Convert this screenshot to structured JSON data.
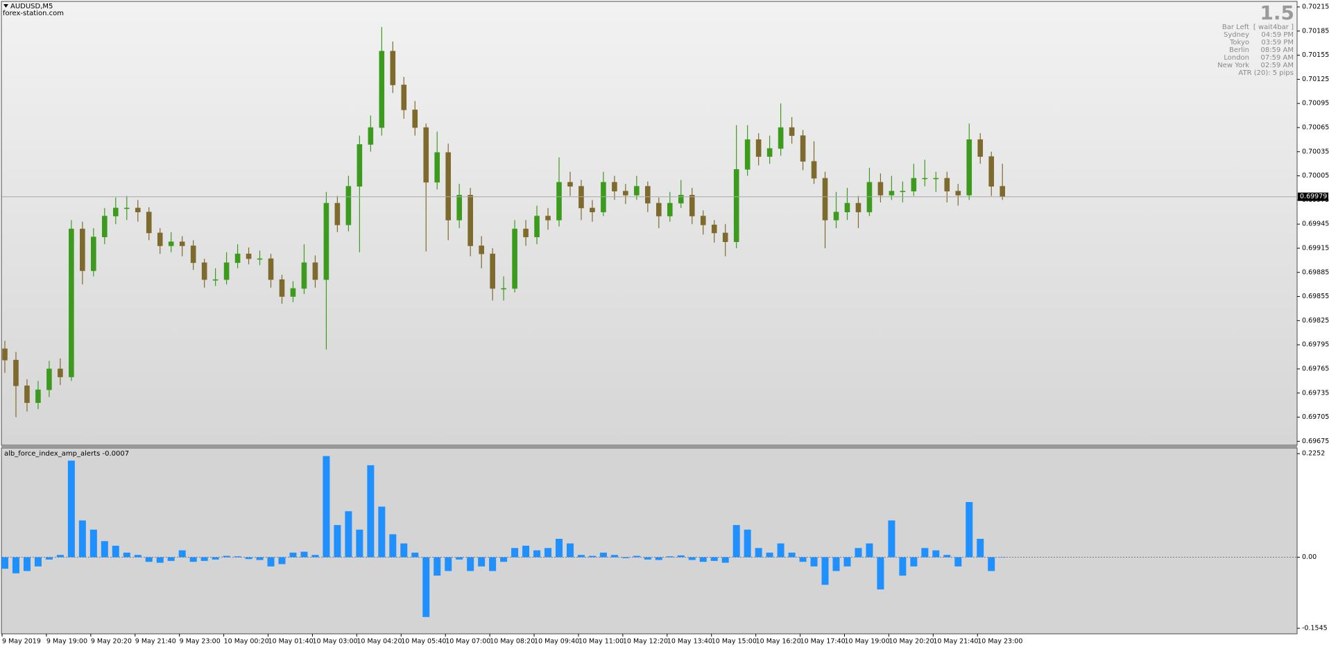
{
  "chart_data": [
    {
      "type": "candlestick",
      "title": "AUDUSD,M5",
      "subtitle": "forex-station.com",
      "categories": [
        "9 May 2019",
        null,
        null,
        null,
        "9 May 19:00",
        null,
        null,
        null,
        "9 May 20:20",
        null,
        null,
        null,
        "9 May 21:40",
        null,
        null,
        null,
        "9 May 23:00",
        null,
        null,
        null,
        "10 May 00:20",
        null,
        null,
        null,
        "10 May 01:40",
        null,
        null,
        null,
        "10 May 03:00",
        null,
        null,
        null,
        "10 May 04:20",
        null,
        null,
        null,
        "10 May 05:40",
        null,
        null,
        null,
        "10 May 07:00",
        null,
        null,
        null,
        "10 May 08:20",
        null,
        null,
        null,
        "10 May 09:40",
        null,
        null,
        null,
        "10 May 11:00",
        null,
        null,
        null,
        "10 May 12:20",
        null,
        null,
        null,
        "10 May 13:40",
        null,
        null,
        null,
        "10 May 15:00",
        null,
        null,
        null,
        "10 May 16:20",
        null,
        null,
        null,
        "10 May 17:40",
        null,
        null,
        null,
        "10 May 19:00",
        null,
        null,
        null,
        "10 May 20:20",
        null,
        null,
        null,
        "10 May 21:40",
        null,
        null,
        null,
        "10 May 23:00",
        null,
        null
      ],
      "open": [
        0.6979,
        0.69776,
        0.69744,
        0.69723,
        0.69739,
        0.69765,
        0.69755,
        0.69939,
        0.69887,
        0.69929,
        0.69955,
        0.69965,
        0.69965,
        0.6996,
        0.69934,
        0.69918,
        0.69923,
        0.69918,
        0.69897,
        0.69876,
        0.69876,
        0.69897,
        0.69908,
        0.69902,
        0.69902,
        0.69876,
        0.69855,
        0.69865,
        0.69897,
        0.69876,
        0.69971,
        0.69944,
        0.69992,
        0.70044,
        0.70065,
        0.7016,
        0.70118,
        0.70087,
        0.70065,
        0.69997,
        0.70034,
        0.6995,
        0.69981,
        0.69918,
        0.69908,
        0.69865,
        0.69865,
        0.69939,
        0.69929,
        0.69955,
        0.6995,
        0.69997,
        0.69992,
        0.69965,
        0.6996,
        0.69997,
        0.69986,
        0.69981,
        0.69992,
        0.69971,
        0.69955,
        0.69971,
        0.69981,
        0.69955,
        0.69944,
        0.69934,
        0.69923,
        0.70013,
        0.7005,
        0.70029,
        0.70039,
        0.70065,
        0.70055,
        0.70023,
        0.70002,
        0.6995,
        0.6996,
        0.69971,
        0.6996,
        0.69997,
        0.69981,
        0.69986,
        0.69986,
        0.70002,
        0.70002,
        0.70002,
        0.69986,
        0.69981,
        0.7005,
        0.70029,
        0.69992
      ],
      "high": [
        0.698,
        0.69786,
        0.69752,
        0.6975,
        0.69775,
        0.69778,
        0.6995,
        0.69948,
        0.6994,
        0.69965,
        0.69978,
        0.6998,
        0.69975,
        0.69966,
        0.6994,
        0.69935,
        0.6993,
        0.69925,
        0.69902,
        0.6989,
        0.6991,
        0.6992,
        0.69916,
        0.69912,
        0.69908,
        0.69882,
        0.69874,
        0.6992,
        0.69906,
        0.69985,
        0.6998,
        0.70005,
        0.70055,
        0.7008,
        0.7019,
        0.70172,
        0.70128,
        0.70098,
        0.7007,
        0.7006,
        0.70045,
        0.69995,
        0.6999,
        0.6993,
        0.69915,
        0.6988,
        0.6995,
        0.6995,
        0.69968,
        0.69965,
        0.70028,
        0.7001,
        0.7,
        0.69975,
        0.7001,
        0.70005,
        0.69995,
        0.70005,
        0.69998,
        0.69978,
        0.69985,
        0.7,
        0.6999,
        0.69962,
        0.6995,
        0.69945,
        0.70068,
        0.70068,
        0.70058,
        0.70055,
        0.70095,
        0.70078,
        0.70062,
        0.70048,
        0.7001,
        0.69985,
        0.6999,
        0.6998,
        0.70015,
        0.70008,
        0.70005,
        0.69998,
        0.7002,
        0.70025,
        0.7001,
        0.7001,
        0.69995,
        0.7007,
        0.70058,
        0.70035,
        0.7002
      ],
      "low": [
        0.6976,
        0.69705,
        0.69712,
        0.69715,
        0.6973,
        0.69745,
        0.6975,
        0.6987,
        0.6988,
        0.6992,
        0.69945,
        0.6995,
        0.69948,
        0.69925,
        0.69908,
        0.6991,
        0.69905,
        0.69888,
        0.69866,
        0.69868,
        0.6987,
        0.6989,
        0.69895,
        0.69894,
        0.69866,
        0.69846,
        0.69848,
        0.69858,
        0.69866,
        0.69789,
        0.69935,
        0.69936,
        0.6991,
        0.70035,
        0.70055,
        0.70108,
        0.70076,
        0.70055,
        0.69911,
        0.69988,
        0.69925,
        0.6994,
        0.69905,
        0.6989,
        0.6985,
        0.6985,
        0.6986,
        0.69918,
        0.6992,
        0.69938,
        0.69942,
        0.6998,
        0.6995,
        0.69948,
        0.69955,
        0.69975,
        0.6997,
        0.69975,
        0.6996,
        0.6994,
        0.69948,
        0.69965,
        0.69945,
        0.69932,
        0.69922,
        0.69905,
        0.69915,
        0.70005,
        0.70018,
        0.7002,
        0.7003,
        0.70045,
        0.70012,
        0.69995,
        0.69915,
        0.6994,
        0.6995,
        0.6994,
        0.69955,
        0.69972,
        0.69975,
        0.69972,
        0.6998,
        0.69992,
        0.69985,
        0.69972,
        0.69968,
        0.69975,
        0.7002,
        0.6998,
        0.69975
      ],
      "close": [
        0.69776,
        0.69744,
        0.69723,
        0.69739,
        0.69765,
        0.69755,
        0.69939,
        0.69887,
        0.69929,
        0.69955,
        0.69965,
        0.69965,
        0.6996,
        0.69934,
        0.69918,
        0.69923,
        0.69918,
        0.69897,
        0.69876,
        0.69876,
        0.69897,
        0.69908,
        0.69902,
        0.69902,
        0.69876,
        0.69855,
        0.69865,
        0.69897,
        0.69876,
        0.69971,
        0.69944,
        0.69992,
        0.70044,
        0.70065,
        0.7016,
        0.70118,
        0.70087,
        0.70065,
        0.69997,
        0.70034,
        0.6995,
        0.69981,
        0.69918,
        0.69908,
        0.69865,
        0.69865,
        0.69939,
        0.69929,
        0.69955,
        0.6995,
        0.69997,
        0.69992,
        0.69965,
        0.6996,
        0.69997,
        0.69986,
        0.69981,
        0.69992,
        0.69971,
        0.69955,
        0.69971,
        0.69981,
        0.69955,
        0.69944,
        0.69934,
        0.69923,
        0.70013,
        0.7005,
        0.70029,
        0.70039,
        0.70065,
        0.70055,
        0.70023,
        0.70002,
        0.6995,
        0.6996,
        0.69971,
        0.6996,
        0.69997,
        0.69981,
        0.69986,
        0.69986,
        0.70002,
        0.70002,
        0.70002,
        0.69986,
        0.69981,
        0.7005,
        0.70029,
        0.69992,
        0.69979
      ],
      "up_color": "#3c9b1c",
      "down_color": "#7d6a2c",
      "ylim": [
        0.69671,
        0.70221
      ],
      "yticks": [
        0.70215,
        0.70185,
        0.70155,
        0.70125,
        0.70095,
        0.70065,
        0.70035,
        0.70005,
        0.69975,
        0.69945,
        0.69915,
        0.69885,
        0.69855,
        0.69825,
        0.69795,
        0.69765,
        0.69735,
        0.69705,
        0.69675
      ],
      "last_price": 0.69979,
      "info_panel": {
        "value": 1.5,
        "rows": [
          [
            "Bar Left",
            "[ wait4bar ]"
          ],
          [
            "Sydney",
            "04:59 PM"
          ],
          [
            "Tokyo",
            "03:59 PM"
          ],
          [
            "Berlin",
            "08:59 AM"
          ],
          [
            "London",
            "07:59 AM"
          ],
          [
            "New York",
            "02:59 AM"
          ]
        ],
        "atr": "ATR (20): 5 pips"
      }
    },
    {
      "type": "bar",
      "title": "alb_force_index_amp_alerts -0.0007",
      "values": [
        -0.025,
        -0.035,
        -0.03,
        -0.02,
        -0.005,
        0.005,
        0.21,
        0.08,
        0.06,
        0.035,
        0.025,
        0.01,
        0.005,
        -0.01,
        -0.012,
        -0.008,
        0.015,
        -0.01,
        -0.008,
        -0.005,
        0.003,
        0.002,
        -0.004,
        -0.006,
        -0.02,
        -0.015,
        0.01,
        0.012,
        0.005,
        0.22,
        0.07,
        0.1,
        0.06,
        0.2,
        0.11,
        0.05,
        0.03,
        0.01,
        -0.13,
        -0.04,
        -0.03,
        -0.005,
        -0.03,
        -0.02,
        -0.03,
        -0.01,
        0.02,
        0.025,
        0.015,
        0.02,
        0.04,
        0.03,
        0.005,
        0.003,
        0.01,
        0.005,
        -0.002,
        0.003,
        -0.005,
        -0.006,
        0.002,
        0.004,
        -0.006,
        -0.01,
        -0.008,
        -0.012,
        0.07,
        0.06,
        0.02,
        0.01,
        0.03,
        0.01,
        -0.01,
        -0.02,
        -0.06,
        -0.03,
        -0.02,
        0.02,
        0.03,
        -0.07,
        0.08,
        -0.04,
        -0.02,
        0.02,
        0.015,
        0.005,
        -0.02,
        0.12,
        0.04,
        -0.03,
        -0.0007
      ],
      "color": "#1e90ff",
      "ylim": [
        -0.165,
        0.236
      ],
      "yticks": [
        0.2252,
        {
          "value": 0,
          "label": "0.00"
        },
        -0.1545
      ]
    }
  ]
}
